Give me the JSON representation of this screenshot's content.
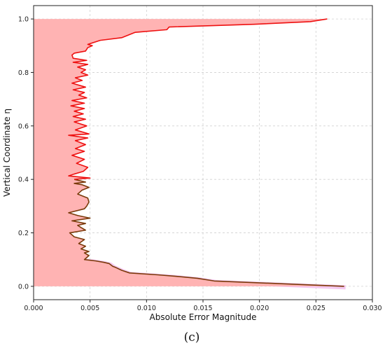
{
  "chart_data": {
    "type": "area",
    "xlabel": "Absolute Error Magnitude",
    "ylabel": "Vertical Coordinate η",
    "xlim": [
      0,
      0.03
    ],
    "ylim": [
      -0.05,
      1.05
    ],
    "xticks": [
      0.0,
      0.005,
      0.01,
      0.015,
      0.02,
      0.025,
      0.03
    ],
    "xtick_labels": [
      "0.000",
      "0.005",
      "0.010",
      "0.015",
      "0.020",
      "0.025",
      "0.030"
    ],
    "yticks": [
      0.0,
      0.2,
      0.4,
      0.6,
      0.8,
      1.0
    ],
    "ytick_labels": [
      "0.0",
      "0.2",
      "0.4",
      "0.6",
      "0.8",
      "1.0"
    ],
    "grid": true,
    "caption": "(c)",
    "colors": {
      "fill": "#ffb3b3",
      "line_upper": "#ee1111",
      "line_lower": "#7a3a0a",
      "shadow": "#f5c8f0"
    },
    "series": [
      {
        "values": [
          [
            0.0275,
            0.0
          ],
          [
            0.016,
            0.02
          ],
          [
            0.0145,
            0.03
          ],
          [
            0.0125,
            0.038
          ],
          [
            0.011,
            0.043
          ],
          [
            0.0085,
            0.05
          ],
          [
            0.0078,
            0.06
          ],
          [
            0.0073,
            0.07
          ],
          [
            0.007,
            0.075
          ],
          [
            0.0067,
            0.085
          ],
          [
            0.0062,
            0.09
          ],
          [
            0.0055,
            0.095
          ],
          [
            0.0045,
            0.1
          ],
          [
            0.0049,
            0.115
          ],
          [
            0.0045,
            0.125
          ],
          [
            0.0049,
            0.13
          ],
          [
            0.0042,
            0.14
          ],
          [
            0.0046,
            0.15
          ],
          [
            0.004,
            0.16
          ],
          [
            0.0045,
            0.175
          ],
          [
            0.0036,
            0.185
          ],
          [
            0.0032,
            0.2
          ],
          [
            0.0046,
            0.21
          ],
          [
            0.0042,
            0.22
          ],
          [
            0.0039,
            0.228
          ],
          [
            0.0046,
            0.235
          ],
          [
            0.0034,
            0.245
          ],
          [
            0.005,
            0.255
          ],
          [
            0.0039,
            0.265
          ],
          [
            0.0031,
            0.275
          ],
          [
            0.0045,
            0.29
          ],
          [
            0.0047,
            0.3
          ],
          [
            0.0049,
            0.315
          ],
          [
            0.0048,
            0.33
          ],
          [
            0.0039,
            0.345
          ],
          [
            0.0043,
            0.36
          ],
          [
            0.0049,
            0.37
          ],
          [
            0.0043,
            0.38
          ],
          [
            0.0036,
            0.385
          ],
          [
            0.0046,
            0.39
          ],
          [
            0.0036,
            0.4
          ],
          [
            0.005,
            0.405
          ],
          [
            0.0031,
            0.413
          ],
          [
            0.0036,
            0.42
          ],
          [
            0.0044,
            0.43
          ],
          [
            0.0048,
            0.445
          ],
          [
            0.0038,
            0.46
          ],
          [
            0.0045,
            0.475
          ],
          [
            0.0034,
            0.49
          ],
          [
            0.0045,
            0.505
          ],
          [
            0.0037,
            0.515
          ],
          [
            0.0046,
            0.53
          ],
          [
            0.0037,
            0.545
          ],
          [
            0.0048,
            0.555
          ],
          [
            0.0031,
            0.565
          ],
          [
            0.0049,
            0.57
          ],
          [
            0.0037,
            0.585
          ],
          [
            0.0047,
            0.6
          ],
          [
            0.0036,
            0.615
          ],
          [
            0.0046,
            0.625
          ],
          [
            0.0035,
            0.635
          ],
          [
            0.0044,
            0.645
          ],
          [
            0.0036,
            0.655
          ],
          [
            0.0045,
            0.665
          ],
          [
            0.0033,
            0.675
          ],
          [
            0.0045,
            0.685
          ],
          [
            0.0034,
            0.695
          ],
          [
            0.0047,
            0.705
          ],
          [
            0.004,
            0.715
          ],
          [
            0.0045,
            0.725
          ],
          [
            0.0035,
            0.735
          ],
          [
            0.0046,
            0.745
          ],
          [
            0.0034,
            0.76
          ],
          [
            0.0043,
            0.77
          ],
          [
            0.0037,
            0.78
          ],
          [
            0.0048,
            0.79
          ],
          [
            0.0042,
            0.8
          ],
          [
            0.0046,
            0.81
          ],
          [
            0.0039,
            0.82
          ],
          [
            0.0048,
            0.83
          ],
          [
            0.0035,
            0.838
          ],
          [
            0.0047,
            0.845
          ],
          [
            0.0035,
            0.853
          ],
          [
            0.0034,
            0.865
          ],
          [
            0.0036,
            0.872
          ],
          [
            0.0046,
            0.88
          ],
          [
            0.0048,
            0.893
          ],
          [
            0.0052,
            0.9
          ],
          [
            0.0048,
            0.905
          ],
          [
            0.0059,
            0.92
          ],
          [
            0.0078,
            0.93
          ],
          [
            0.009,
            0.95
          ],
          [
            0.0118,
            0.96
          ],
          [
            0.012,
            0.97
          ],
          [
            0.0195,
            0.98
          ],
          [
            0.0245,
            0.99
          ],
          [
            0.026,
            1.0
          ]
        ]
      }
    ]
  }
}
